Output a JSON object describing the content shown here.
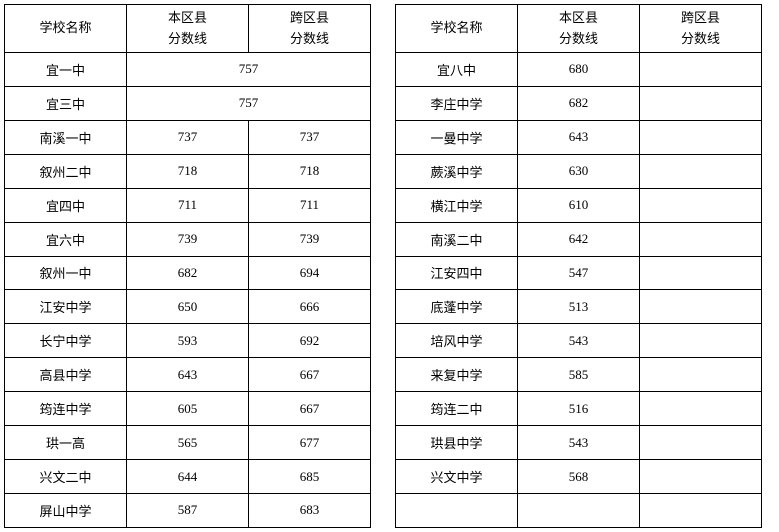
{
  "headers": {
    "school_name": "学校名称",
    "local_score_line1": "本区县",
    "local_score_line2": "分数线",
    "cross_score_line1": "跨区县",
    "cross_score_line2": "分数线"
  },
  "left_rows": [
    {
      "name": "宜一中",
      "merged": "757"
    },
    {
      "name": "宜三中",
      "merged": "757"
    },
    {
      "name": "南溪一中",
      "local": "737",
      "cross": "737"
    },
    {
      "name": "叙州二中",
      "local": "718",
      "cross": "718"
    },
    {
      "name": "宜四中",
      "local": "711",
      "cross": "711"
    },
    {
      "name": "宜六中",
      "local": "739",
      "cross": "739"
    },
    {
      "name": "叙州一中",
      "local": "682",
      "cross": "694"
    },
    {
      "name": "江安中学",
      "local": "650",
      "cross": "666"
    },
    {
      "name": "长宁中学",
      "local": "593",
      "cross": "692"
    },
    {
      "name": "高县中学",
      "local": "643",
      "cross": "667"
    },
    {
      "name": "筠连中学",
      "local": "605",
      "cross": "667"
    },
    {
      "name": "珙一高",
      "local": "565",
      "cross": "677"
    },
    {
      "name": "兴文二中",
      "local": "644",
      "cross": "685"
    },
    {
      "name": "屏山中学",
      "local": "587",
      "cross": "683"
    }
  ],
  "right_rows": [
    {
      "name": "宜八中",
      "local": "680",
      "cross": ""
    },
    {
      "name": "李庄中学",
      "local": "682",
      "cross": ""
    },
    {
      "name": "一曼中学",
      "local": "643",
      "cross": ""
    },
    {
      "name": "蕨溪中学",
      "local": "630",
      "cross": ""
    },
    {
      "name": "横江中学",
      "local": "610",
      "cross": ""
    },
    {
      "name": "南溪二中",
      "local": "642",
      "cross": ""
    },
    {
      "name": "江安四中",
      "local": "547",
      "cross": ""
    },
    {
      "name": "底蓬中学",
      "local": "513",
      "cross": ""
    },
    {
      "name": "培风中学",
      "local": "543",
      "cross": ""
    },
    {
      "name": "来复中学",
      "local": "585",
      "cross": ""
    },
    {
      "name": "筠连二中",
      "local": "516",
      "cross": ""
    },
    {
      "name": "珙县中学",
      "local": "543",
      "cross": ""
    },
    {
      "name": "兴文中学",
      "local": "568",
      "cross": ""
    },
    {
      "name": "",
      "local": "",
      "cross": ""
    }
  ]
}
